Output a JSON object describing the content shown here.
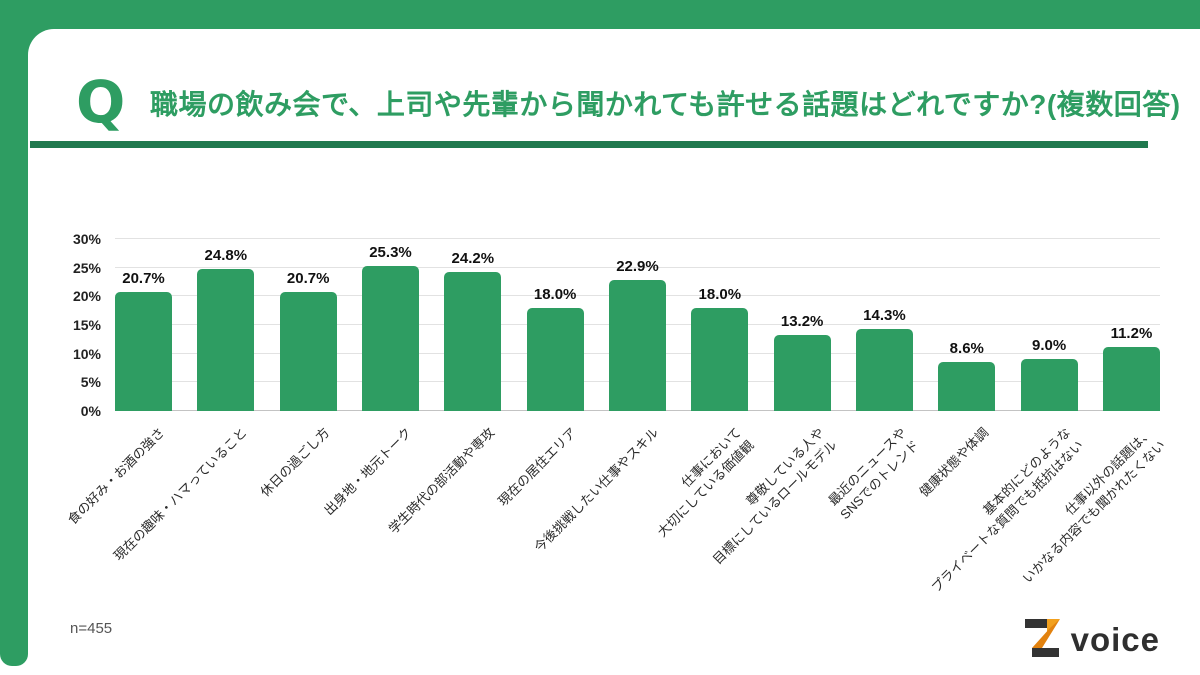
{
  "page": {
    "background": "#ffffff",
    "accent_green": "#2e9d62",
    "accent_green_dark": "#20794e"
  },
  "header": {
    "q_mark": "Q",
    "title": "職場の飲み会で、上司や先輩から聞かれても許せる話題はどれですか?(複数回答)"
  },
  "chart_data": {
    "type": "bar",
    "title": "職場の飲み会で、上司や先輩から聞かれても許せる話題はどれですか?(複数回答)",
    "categories": [
      [
        "食の好み・お酒の強さ"
      ],
      [
        "現在の趣味・ハマっていること"
      ],
      [
        "休日の過ごし方"
      ],
      [
        "出身地・地元トーク"
      ],
      [
        "学生時代の部活動や専攻"
      ],
      [
        "現在の居住エリア"
      ],
      [
        "今後挑戦したい仕事やスキル"
      ],
      [
        "仕事において",
        "大切にしている価値観"
      ],
      [
        "尊敬している人や",
        "目標にしているロールモデル"
      ],
      [
        "最近のニュースや",
        "SNSでのトレンド"
      ],
      [
        "健康状態や体調"
      ],
      [
        "基本的にどのような",
        "プライベートな質問でも抵抗はない"
      ],
      [
        "仕事以外の話題は、",
        "いかなる内容でも聞かれたくない"
      ]
    ],
    "values": [
      20.7,
      24.8,
      20.7,
      25.3,
      24.2,
      18.0,
      22.9,
      18.0,
      13.2,
      14.3,
      8.6,
      9.0,
      11.2
    ],
    "value_labels": [
      "20.7%",
      "24.8%",
      "20.7%",
      "25.3%",
      "24.2%",
      "18.0%",
      "22.9%",
      "18.0%",
      "13.2%",
      "14.3%",
      "8.6%",
      "9.0%",
      "11.2%"
    ],
    "xlabel": "",
    "ylabel": "",
    "ylim": [
      0,
      30
    ],
    "yticks": [
      {
        "value": 0,
        "label": "0%"
      },
      {
        "value": 5,
        "label": "5%"
      },
      {
        "value": 10,
        "label": "10%"
      },
      {
        "value": 15,
        "label": "15%"
      },
      {
        "value": 20,
        "label": "20%"
      },
      {
        "value": 25,
        "label": "25%"
      },
      {
        "value": 30,
        "label": "30%"
      }
    ],
    "grid": true,
    "legend": "none",
    "bar_color": "#2e9d62",
    "label_rotation_deg": -45
  },
  "footer": {
    "sample_size_label": "n=455",
    "brand": {
      "symbol": "Z",
      "name": "voice",
      "symbol_dark": "#333333",
      "symbol_orange": "#f2a01d",
      "symbol_orange_dark": "#e2820f"
    }
  }
}
